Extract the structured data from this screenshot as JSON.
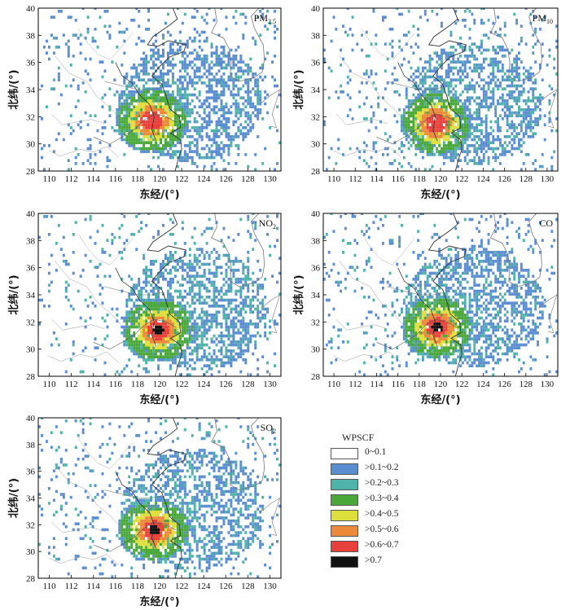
{
  "chart_data": {
    "type": "heatmap",
    "shared": {
      "xlabel": "东经/(°)",
      "ylabel": "北纬/(°)",
      "xlim": [
        109,
        131
      ],
      "ylim": [
        28,
        40
      ],
      "xticks": [
        110,
        112,
        114,
        116,
        118,
        120,
        122,
        124,
        126,
        128,
        130
      ],
      "yticks": [
        28,
        30,
        32,
        34,
        36,
        38,
        40
      ],
      "grid": false,
      "legend_position": "bottom-right"
    },
    "panels": [
      {
        "label_main": "PM",
        "label_sub": "2.5",
        "hotspot": [
          119.2,
          31.6
        ],
        "peak_class": 6
      },
      {
        "label_main": "PM",
        "label_sub": "10",
        "hotspot": [
          119.5,
          31.4
        ],
        "peak_class": 6
      },
      {
        "label_main": "NO",
        "label_sub": "2",
        "hotspot": [
          119.8,
          31.3
        ],
        "peak_class": 7
      },
      {
        "label_main": "CO",
        "label_sub": "",
        "hotspot": [
          119.6,
          31.5
        ],
        "peak_class": 7
      },
      {
        "label_main": "SO",
        "label_sub": "2",
        "hotspot": [
          119.4,
          31.5
        ],
        "peak_class": 7
      }
    ],
    "legend": {
      "title": "WPSCF",
      "classes": [
        {
          "label": "0~0.1",
          "color": "#ffffff"
        },
        {
          "label": ">0.1~0.2",
          "color": "#5b8ed1"
        },
        {
          "label": ">0.2~0.3",
          "color": "#4fb3aa"
        },
        {
          "label": ">0.3~0.4",
          "color": "#4aa83a"
        },
        {
          "label": ">0.4~0.5",
          "color": "#dede3c"
        },
        {
          "label": ">0.5~0.6",
          "color": "#ea8a3a"
        },
        {
          "label": ">0.6~0.7",
          "color": "#e8413c"
        },
        {
          "label": ">0.7",
          "color": "#111111"
        }
      ]
    }
  }
}
